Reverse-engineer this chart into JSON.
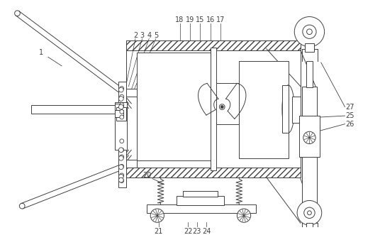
{
  "bg_color": "#ffffff",
  "line_color": "#404040",
  "fig_width": 5.36,
  "fig_height": 3.31,
  "dpi": 100
}
